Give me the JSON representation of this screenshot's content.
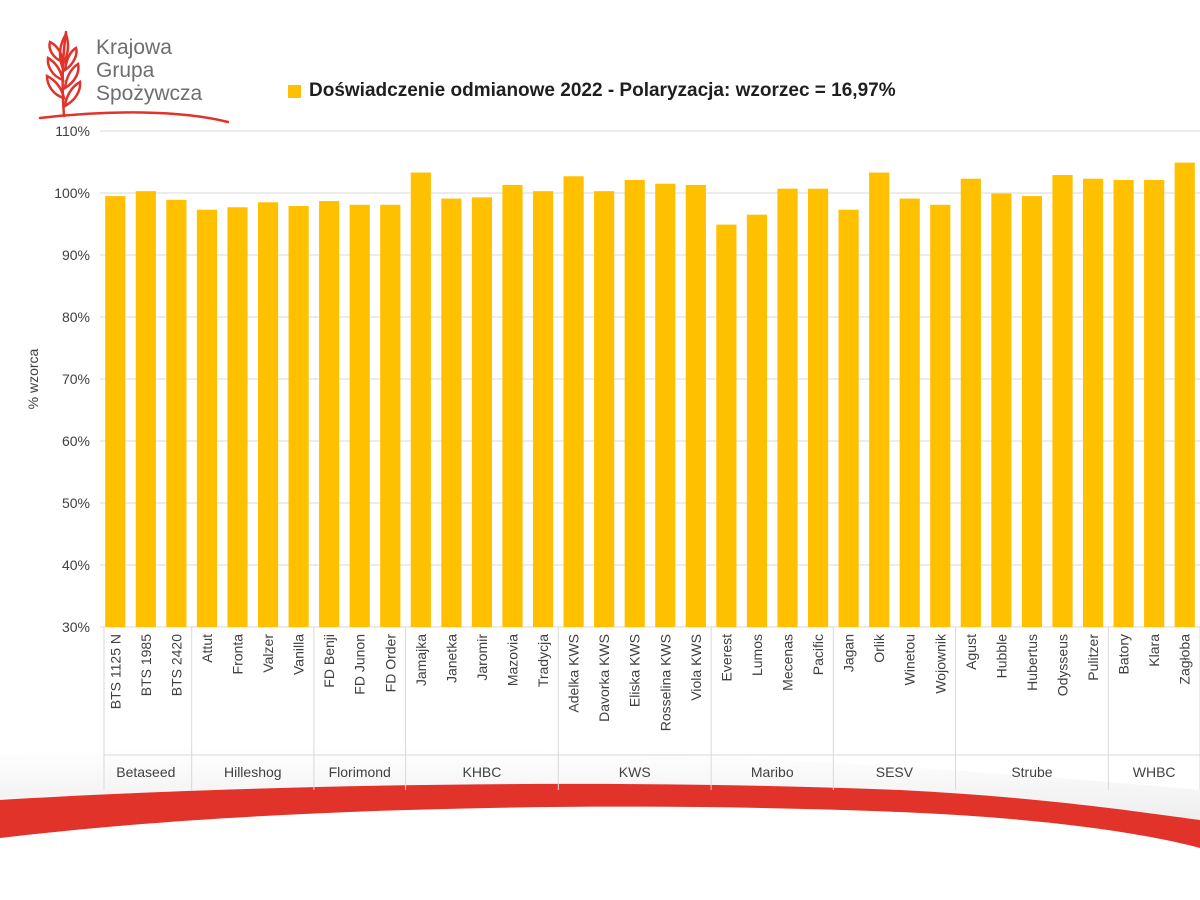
{
  "logo": {
    "lines": [
      "Krajowa",
      "Grupa",
      "Spożywcza"
    ],
    "brand_color": "#e2332b"
  },
  "chart_data": {
    "type": "bar",
    "title": "Doświadczenie odmianowe 2022 - Polaryzacja: wzorzec = 16,97%",
    "ylabel": "% wzorca",
    "xlabel": "",
    "ylim": [
      30,
      110
    ],
    "ytick_labels": [
      "30%",
      "40%",
      "50%",
      "60%",
      "70%",
      "80%",
      "90%",
      "100%",
      "110%"
    ],
    "grid": true,
    "legend": "top",
    "bar_color": "#ffc000",
    "series": [
      {
        "name": "Doświadczenie odmianowe 2022 - Polaryzacja: wzorzec = 16,97%",
        "values": [
          99.5,
          100.3,
          98.9,
          97.3,
          97.7,
          98.5,
          97.9,
          98.7,
          98.1,
          98.1,
          103.3,
          99.1,
          99.3,
          101.3,
          100.3,
          102.7,
          100.3,
          102.1,
          101.5,
          101.3,
          94.9,
          96.5,
          100.7,
          100.7,
          97.3,
          103.3,
          99.1,
          98.1,
          102.3,
          99.9,
          99.5,
          102.9,
          102.3,
          102.1,
          102.1,
          104.9
        ]
      }
    ],
    "categories": [
      "BTS 1125 N",
      "BTS 1985",
      "BTS 2420",
      "Attut",
      "Fronta",
      "Valzer",
      "Vanilla",
      "FD Benji",
      "FD Junon",
      "FD Order",
      "Jamajka",
      "Janetka",
      "Jaromir",
      "Mazovia",
      "Tradycja",
      "Adelka KWS",
      "Davorka KWS",
      "Eliska KWS",
      "Rosselina KWS",
      "Viola KWS",
      "Everest",
      "Lumos",
      "Mecenas",
      "Pacific",
      "Jagan",
      "Orlik",
      "Winetou",
      "Wojownik",
      "Agust",
      "Hubble",
      "Hubertus",
      "Odysseus",
      "Pulitzer",
      "Batory",
      "Klara",
      "Zagłoba"
    ],
    "groups": [
      {
        "name": "Betaseed",
        "count": 3
      },
      {
        "name": "Hilleshog",
        "count": 4
      },
      {
        "name": "Florimond",
        "count": 3
      },
      {
        "name": "KHBC",
        "count": 5
      },
      {
        "name": "KWS",
        "count": 5
      },
      {
        "name": "Maribo",
        "count": 4
      },
      {
        "name": "SESV",
        "count": 4
      },
      {
        "name": "Strube",
        "count": 5
      },
      {
        "name": "WHBC",
        "count": 3
      }
    ]
  }
}
